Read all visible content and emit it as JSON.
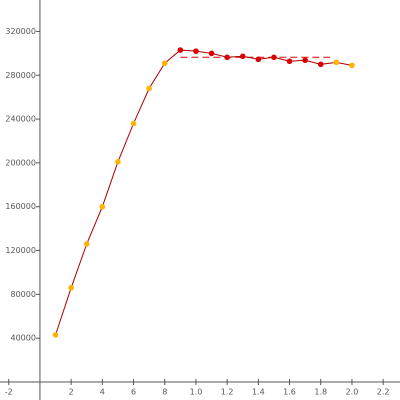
{
  "chart_data": {
    "type": "line",
    "x": [
      1,
      2,
      3,
      4,
      5,
      6,
      7,
      8,
      9,
      10,
      11,
      12,
      13,
      14,
      15,
      16,
      17,
      18,
      19,
      20
    ],
    "series": [
      {
        "color": "#aa0000",
        "values": [
          43000,
          86000,
          126000,
          160000,
          201000,
          236000,
          268000,
          291000,
          303000,
          302000,
          300000,
          296400,
          297300,
          294600,
          296400,
          292800,
          293700,
          290000,
          291800,
          289000
        ],
        "point_colors": [
          "#ffb300",
          "#ffb300",
          "#ffb300",
          "#ffb300",
          "#ffb300",
          "#ffb300",
          "#ffb300",
          "#ffb300",
          "#dd0000",
          "#dd0000",
          "#dd0000",
          "#dd0000",
          "#dd0000",
          "#dd0000",
          "#dd0000",
          "#dd0000",
          "#dd0000",
          "#dd0000",
          "#ffb300",
          "#ffb300"
        ]
      }
    ],
    "reference_line": {
      "value": 296400,
      "x": [
        9,
        18.6
      ],
      "color": "#dd0000"
    },
    "xlim": [
      -2.56,
      23.08
    ],
    "ylim": [
      0,
      348700
    ],
    "xticks": [
      -2,
      2,
      4,
      6,
      8,
      {
        "value": 10,
        "label": "1.0"
      },
      {
        "value": 12,
        "label": "1.2"
      },
      {
        "value": 14,
        "label": "1.4"
      },
      {
        "value": 16,
        "label": "1.6"
      },
      {
        "value": 18,
        "label": "1.8"
      },
      {
        "value": 20,
        "label": "2.0"
      },
      {
        "value": 22,
        "label": "2.2"
      }
    ],
    "yticks": [
      40000,
      80000,
      120000,
      160000,
      200000,
      240000,
      280000,
      320000
    ]
  }
}
